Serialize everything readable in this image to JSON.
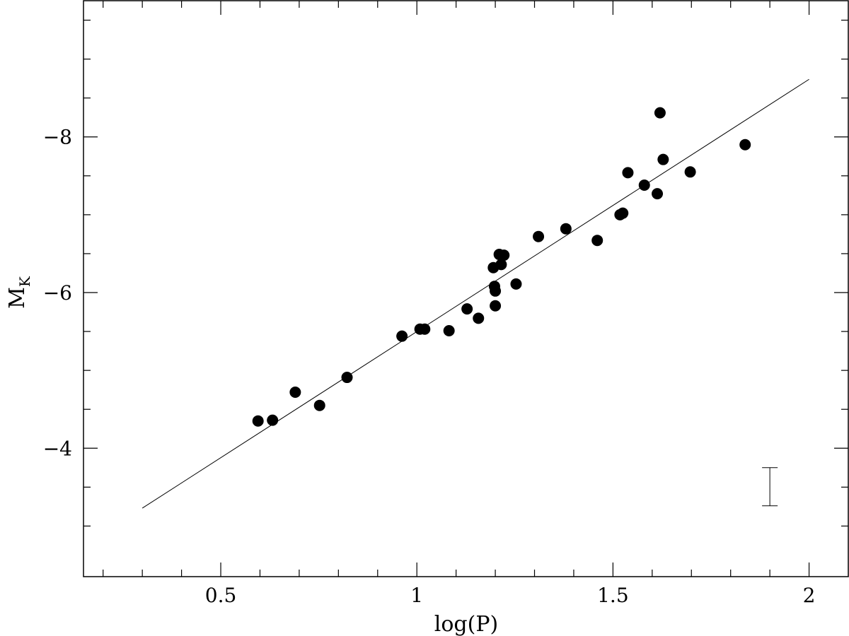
{
  "chart_data": {
    "type": "scatter",
    "title": "",
    "xlabel": "log(P)",
    "ylabel": {
      "main": "M",
      "subscript": "K"
    },
    "xlim": [
      0.15,
      2.1
    ],
    "ylim": [
      -2.35,
      -9.75
    ],
    "y_axis_inverted": true,
    "x_ticks": [
      0.5,
      1,
      1.5,
      2
    ],
    "x_tick_labels": [
      "0.5",
      "1",
      "1.5",
      "2"
    ],
    "y_ticks": [
      -4,
      -6,
      -8
    ],
    "y_tick_labels": [
      "−4",
      "−6",
      "−8"
    ],
    "grid": false,
    "legend": "none",
    "points": [
      {
        "x": 0.595,
        "y": -4.35
      },
      {
        "x": 0.632,
        "y": -4.36
      },
      {
        "x": 0.69,
        "y": -4.72
      },
      {
        "x": 0.752,
        "y": -4.55
      },
      {
        "x": 0.822,
        "y": -4.91
      },
      {
        "x": 0.962,
        "y": -5.44
      },
      {
        "x": 1.008,
        "y": -5.53
      },
      {
        "x": 1.02,
        "y": -5.53
      },
      {
        "x": 1.082,
        "y": -5.51
      },
      {
        "x": 1.128,
        "y": -5.79
      },
      {
        "x": 1.157,
        "y": -5.67
      },
      {
        "x": 1.195,
        "y": -6.32
      },
      {
        "x": 1.198,
        "y": -6.08
      },
      {
        "x": 1.2,
        "y": -6.02
      },
      {
        "x": 1.2,
        "y": -5.83
      },
      {
        "x": 1.21,
        "y": -6.49
      },
      {
        "x": 1.215,
        "y": -6.36
      },
      {
        "x": 1.222,
        "y": -6.48
      },
      {
        "x": 1.253,
        "y": -6.11
      },
      {
        "x": 1.31,
        "y": -6.72
      },
      {
        "x": 1.38,
        "y": -6.82
      },
      {
        "x": 1.46,
        "y": -6.67
      },
      {
        "x": 1.518,
        "y": -7.0
      },
      {
        "x": 1.525,
        "y": -7.02
      },
      {
        "x": 1.538,
        "y": -7.54
      },
      {
        "x": 1.58,
        "y": -7.38
      },
      {
        "x": 1.613,
        "y": -7.27
      },
      {
        "x": 1.62,
        "y": -8.31
      },
      {
        "x": 1.628,
        "y": -7.71
      },
      {
        "x": 1.697,
        "y": -7.55
      },
      {
        "x": 1.837,
        "y": -7.9
      }
    ],
    "fit_line": {
      "x": [
        0.3,
        2.0
      ],
      "y": [
        -3.23,
        -8.74
      ]
    },
    "error_bar": {
      "x": 1.9,
      "y_low": -3.26,
      "y_high": -3.75
    },
    "colors": {
      "points": "#000000",
      "line": "#000000",
      "frame": "#000000"
    }
  }
}
